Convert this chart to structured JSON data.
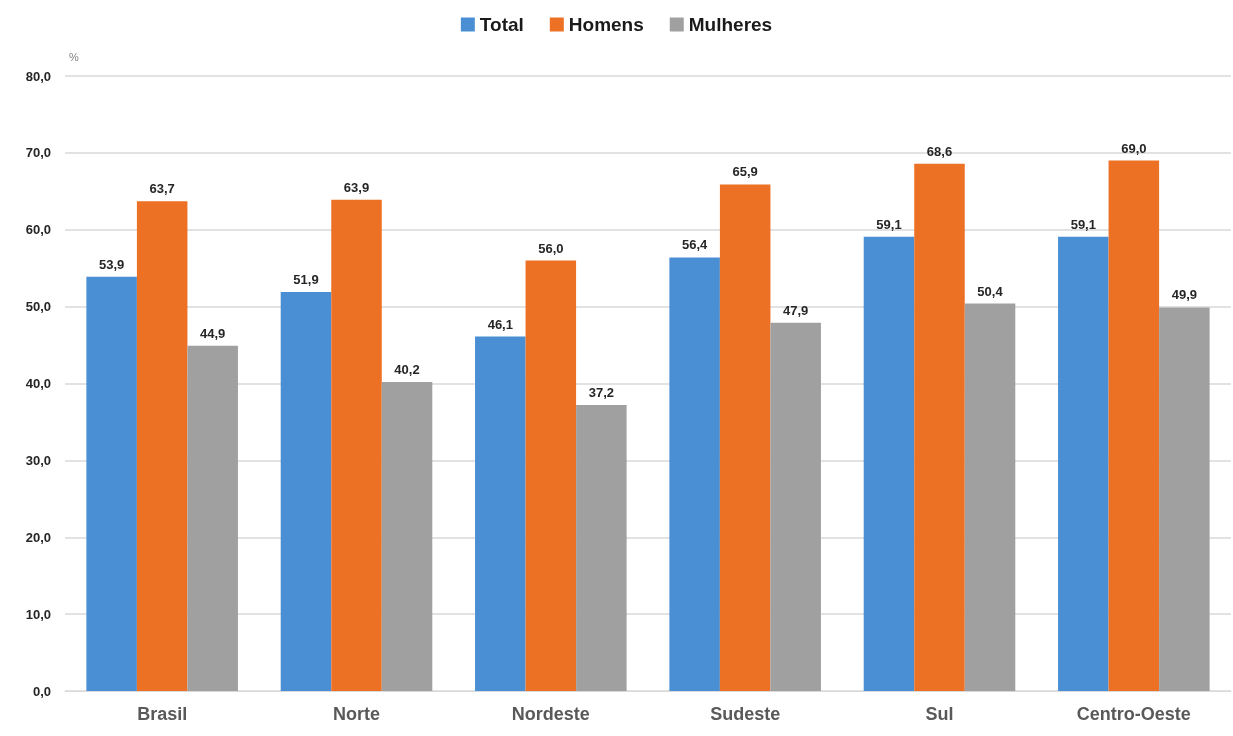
{
  "chart_data": {
    "type": "bar",
    "ylabel": "%",
    "categories": [
      "Brasil",
      "Norte",
      "Nordeste",
      "Sudeste",
      "Sul",
      "Centro-Oeste"
    ],
    "series": [
      {
        "name": "Total",
        "color": "#4a8fd4",
        "values": [
          53.9,
          51.9,
          46.1,
          56.4,
          59.1,
          59.1
        ],
        "value_labels": [
          "53,9",
          "51,9",
          "46,1",
          "56,4",
          "59,1",
          "59,1"
        ]
      },
      {
        "name": "Homens",
        "color": "#ed7125",
        "values": [
          63.7,
          63.9,
          56.0,
          65.9,
          68.6,
          69.0
        ],
        "value_labels": [
          "63,7",
          "63,9",
          "56,0",
          "65,9",
          "68,6",
          "69,0"
        ]
      },
      {
        "name": "Mulheres",
        "color": "#a0a0a0",
        "values": [
          44.9,
          40.2,
          37.2,
          47.9,
          50.4,
          49.9
        ],
        "value_labels": [
          "44,9",
          "40,2",
          "37,2",
          "47,9",
          "50,4",
          "49,9"
        ]
      }
    ],
    "ylim": [
      0,
      80
    ],
    "yticks": [
      {
        "value": 0,
        "label": "0,0"
      },
      {
        "value": 10,
        "label": "10,0"
      },
      {
        "value": 20,
        "label": "20,0"
      },
      {
        "value": 30,
        "label": "30,0"
      },
      {
        "value": 40,
        "label": "40,0"
      },
      {
        "value": 50,
        "label": "50,0"
      },
      {
        "value": 60,
        "label": "60,0"
      },
      {
        "value": 70,
        "label": "70,0"
      },
      {
        "value": 80,
        "label": "80,0"
      }
    ],
    "grid": true,
    "legend": "top"
  }
}
